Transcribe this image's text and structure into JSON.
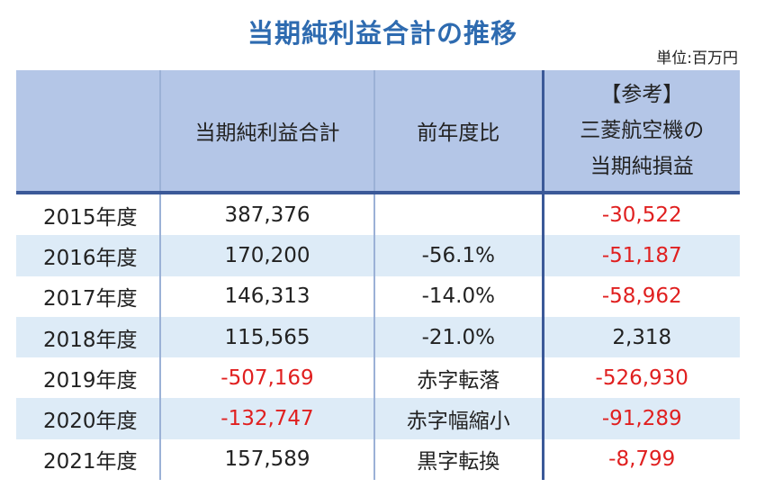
{
  "title": "当期純利益合計の推移",
  "unit": "単位:百万円",
  "header": {
    "col0": "",
    "col1": "当期純利益合計",
    "col2": "前年度比",
    "col3_lines": [
      "【参考】",
      "三菱航空機の",
      "当期純損益"
    ]
  },
  "rows": [
    {
      "year": "2015年度",
      "total": "387,376",
      "total_negative": false,
      "ratio": "",
      "mitsubishi": "-30,522",
      "mitsubishi_negative": true
    },
    {
      "year": "2016年度",
      "total": "170,200",
      "total_negative": false,
      "ratio": "-56.1%",
      "mitsubishi": "-51,187",
      "mitsubishi_negative": true
    },
    {
      "year": "2017年度",
      "total": "146,313",
      "total_negative": false,
      "ratio": "-14.0%",
      "mitsubishi": "-58,962",
      "mitsubishi_negative": true
    },
    {
      "year": "2018年度",
      "total": "115,565",
      "total_negative": false,
      "ratio": "-21.0%",
      "mitsubishi": "2,318",
      "mitsubishi_negative": false
    },
    {
      "year": "2019年度",
      "total": "-507,169",
      "total_negative": true,
      "ratio": "赤字転落",
      "mitsubishi": "-526,930",
      "mitsubishi_negative": true
    },
    {
      "year": "2020年度",
      "total": "-132,747",
      "total_negative": true,
      "ratio": "赤字幅縮小",
      "mitsubishi": "-91,289",
      "mitsubishi_negative": true
    },
    {
      "year": "2021年度",
      "total": "157,589",
      "total_negative": false,
      "ratio": "黒字転換",
      "mitsubishi": "-8,799",
      "mitsubishi_negative": true
    }
  ],
  "colors": {
    "title": "#2E6BB0",
    "header_bg": "#B4C6E7",
    "alt_row_bg": "#DDEBF7",
    "negative": "#E02020",
    "header_rule": "#3B5998"
  }
}
